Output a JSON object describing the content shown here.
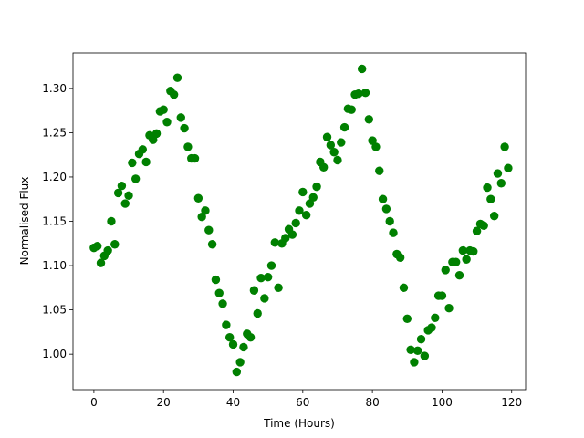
{
  "chart_data": {
    "type": "scatter",
    "xlabel": "Time (Hours)",
    "ylabel": "Normalised Flux",
    "xlim": [
      -6,
      124
    ],
    "ylim": [
      0.96,
      1.34
    ],
    "xticks": [
      0,
      20,
      40,
      60,
      80,
      100,
      120
    ],
    "yticks": [
      1.0,
      1.05,
      1.1,
      1.15,
      1.2,
      1.25,
      1.3
    ],
    "xtick_labels": [
      "0",
      "20",
      "40",
      "60",
      "80",
      "100",
      "120"
    ],
    "ytick_labels": [
      "1.00",
      "1.05",
      "1.10",
      "1.15",
      "1.20",
      "1.25",
      "1.30"
    ],
    "grid": false,
    "marker_color": "#008000",
    "points": [
      {
        "x": 0,
        "y": 1.12
      },
      {
        "x": 1,
        "y": 1.122
      },
      {
        "x": 2,
        "y": 1.103
      },
      {
        "x": 3,
        "y": 1.111
      },
      {
        "x": 4,
        "y": 1.117
      },
      {
        "x": 5,
        "y": 1.15
      },
      {
        "x": 6,
        "y": 1.124
      },
      {
        "x": 7,
        "y": 1.182
      },
      {
        "x": 8,
        "y": 1.19
      },
      {
        "x": 9,
        "y": 1.17
      },
      {
        "x": 10,
        "y": 1.179
      },
      {
        "x": 11,
        "y": 1.216
      },
      {
        "x": 12,
        "y": 1.198
      },
      {
        "x": 13,
        "y": 1.226
      },
      {
        "x": 14,
        "y": 1.231
      },
      {
        "x": 15,
        "y": 1.217
      },
      {
        "x": 16,
        "y": 1.247
      },
      {
        "x": 17,
        "y": 1.242
      },
      {
        "x": 18,
        "y": 1.249
      },
      {
        "x": 19,
        "y": 1.274
      },
      {
        "x": 20,
        "y": 1.276
      },
      {
        "x": 21,
        "y": 1.262
      },
      {
        "x": 22,
        "y": 1.297
      },
      {
        "x": 23,
        "y": 1.293
      },
      {
        "x": 24,
        "y": 1.312
      },
      {
        "x": 25,
        "y": 1.267
      },
      {
        "x": 26,
        "y": 1.255
      },
      {
        "x": 27,
        "y": 1.234
      },
      {
        "x": 28,
        "y": 1.221
      },
      {
        "x": 29,
        "y": 1.221
      },
      {
        "x": 30,
        "y": 1.176
      },
      {
        "x": 31,
        "y": 1.155
      },
      {
        "x": 32,
        "y": 1.162
      },
      {
        "x": 33,
        "y": 1.14
      },
      {
        "x": 34,
        "y": 1.124
      },
      {
        "x": 35,
        "y": 1.084
      },
      {
        "x": 36,
        "y": 1.069
      },
      {
        "x": 37,
        "y": 1.057
      },
      {
        "x": 38,
        "y": 1.033
      },
      {
        "x": 39,
        "y": 1.019
      },
      {
        "x": 40,
        "y": 1.011
      },
      {
        "x": 41,
        "y": 0.98
      },
      {
        "x": 42,
        "y": 0.991
      },
      {
        "x": 43,
        "y": 1.008
      },
      {
        "x": 44,
        "y": 1.023
      },
      {
        "x": 45,
        "y": 1.019
      },
      {
        "x": 46,
        "y": 1.072
      },
      {
        "x": 47,
        "y": 1.046
      },
      {
        "x": 48,
        "y": 1.086
      },
      {
        "x": 49,
        "y": 1.063
      },
      {
        "x": 50,
        "y": 1.087
      },
      {
        "x": 51,
        "y": 1.1
      },
      {
        "x": 52,
        "y": 1.126
      },
      {
        "x": 53,
        "y": 1.075
      },
      {
        "x": 54,
        "y": 1.125
      },
      {
        "x": 55,
        "y": 1.131
      },
      {
        "x": 56,
        "y": 1.141
      },
      {
        "x": 57,
        "y": 1.135
      },
      {
        "x": 58,
        "y": 1.148
      },
      {
        "x": 59,
        "y": 1.162
      },
      {
        "x": 60,
        "y": 1.183
      },
      {
        "x": 61,
        "y": 1.157
      },
      {
        "x": 62,
        "y": 1.17
      },
      {
        "x": 63,
        "y": 1.177
      },
      {
        "x": 64,
        "y": 1.189
      },
      {
        "x": 65,
        "y": 1.217
      },
      {
        "x": 66,
        "y": 1.211
      },
      {
        "x": 67,
        "y": 1.245
      },
      {
        "x": 68,
        "y": 1.236
      },
      {
        "x": 69,
        "y": 1.228
      },
      {
        "x": 70,
        "y": 1.219
      },
      {
        "x": 71,
        "y": 1.239
      },
      {
        "x": 72,
        "y": 1.256
      },
      {
        "x": 73,
        "y": 1.277
      },
      {
        "x": 74,
        "y": 1.276
      },
      {
        "x": 75,
        "y": 1.293
      },
      {
        "x": 76,
        "y": 1.294
      },
      {
        "x": 77,
        "y": 1.322
      },
      {
        "x": 78,
        "y": 1.295
      },
      {
        "x": 79,
        "y": 1.265
      },
      {
        "x": 80,
        "y": 1.241
      },
      {
        "x": 81,
        "y": 1.234
      },
      {
        "x": 82,
        "y": 1.207
      },
      {
        "x": 83,
        "y": 1.175
      },
      {
        "x": 84,
        "y": 1.164
      },
      {
        "x": 85,
        "y": 1.15
      },
      {
        "x": 86,
        "y": 1.137
      },
      {
        "x": 87,
        "y": 1.113
      },
      {
        "x": 88,
        "y": 1.109
      },
      {
        "x": 89,
        "y": 1.075
      },
      {
        "x": 90,
        "y": 1.04
      },
      {
        "x": 91,
        "y": 1.005
      },
      {
        "x": 92,
        "y": 0.991
      },
      {
        "x": 93,
        "y": 1.004
      },
      {
        "x": 94,
        "y": 1.017
      },
      {
        "x": 95,
        "y": 0.998
      },
      {
        "x": 96,
        "y": 1.027
      },
      {
        "x": 97,
        "y": 1.03
      },
      {
        "x": 98,
        "y": 1.041
      },
      {
        "x": 99,
        "y": 1.066
      },
      {
        "x": 100,
        "y": 1.066
      },
      {
        "x": 101,
        "y": 1.095
      },
      {
        "x": 102,
        "y": 1.052
      },
      {
        "x": 103,
        "y": 1.104
      },
      {
        "x": 104,
        "y": 1.104
      },
      {
        "x": 105,
        "y": 1.089
      },
      {
        "x": 106,
        "y": 1.117
      },
      {
        "x": 107,
        "y": 1.107
      },
      {
        "x": 108,
        "y": 1.117
      },
      {
        "x": 109,
        "y": 1.116
      },
      {
        "x": 110,
        "y": 1.139
      },
      {
        "x": 111,
        "y": 1.147
      },
      {
        "x": 112,
        "y": 1.145
      },
      {
        "x": 113,
        "y": 1.188
      },
      {
        "x": 114,
        "y": 1.175
      },
      {
        "x": 115,
        "y": 1.156
      },
      {
        "x": 116,
        "y": 1.204
      },
      {
        "x": 117,
        "y": 1.193
      },
      {
        "x": 118,
        "y": 1.234
      },
      {
        "x": 119,
        "y": 1.21
      }
    ]
  }
}
